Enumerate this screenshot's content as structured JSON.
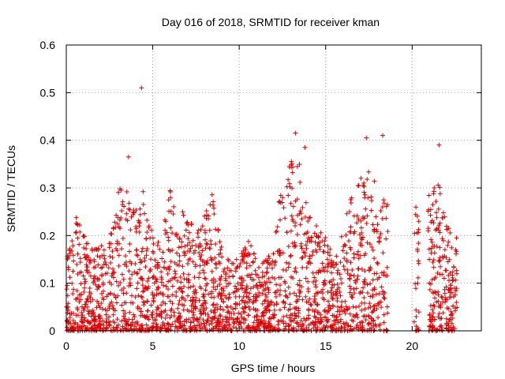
{
  "chart_data": {
    "type": "scatter",
    "title": "Day 016 of 2018, SRMTID for receiver kman",
    "xlabel": "GPS time / hours",
    "ylabel": "SRMTID / TECUs",
    "xlim": [
      0,
      24
    ],
    "ylim": [
      0,
      0.6
    ],
    "xticks": [
      0,
      5,
      10,
      15,
      20
    ],
    "yticks": [
      0,
      0.1,
      0.2,
      0.3,
      0.4,
      0.5,
      0.6
    ],
    "xtick_labels": [
      "0",
      "5",
      "10",
      "15",
      "20"
    ],
    "ytick_labels": [
      "0",
      "0.1",
      "0.2",
      "0.3",
      "0.4",
      "0.5",
      "0.6"
    ],
    "grid": true,
    "marker": "+",
    "series_color": "#e00000",
    "data_gaps_hours": [
      [
        18.6,
        20.1
      ],
      [
        20.4,
        20.9
      ]
    ],
    "notable_points": [
      {
        "x": 4.35,
        "y": 0.51
      },
      {
        "x": 3.6,
        "y": 0.365
      },
      {
        "x": 13.25,
        "y": 0.415
      },
      {
        "x": 13.8,
        "y": 0.385
      },
      {
        "x": 17.35,
        "y": 0.405
      },
      {
        "x": 18.3,
        "y": 0.41
      },
      {
        "x": 21.55,
        "y": 0.39
      },
      {
        "x": 6.75,
        "y": 0.0
      },
      {
        "x": 20.25,
        "y": 0.0
      }
    ],
    "envelope_upper": [
      {
        "x": 0.0,
        "y": 0.15
      },
      {
        "x": 0.5,
        "y": 0.25
      },
      {
        "x": 1.0,
        "y": 0.2
      },
      {
        "x": 1.5,
        "y": 0.18
      },
      {
        "x": 2.0,
        "y": 0.19
      },
      {
        "x": 2.5,
        "y": 0.2
      },
      {
        "x": 3.0,
        "y": 0.3
      },
      {
        "x": 3.5,
        "y": 0.3
      },
      {
        "x": 4.0,
        "y": 0.25
      },
      {
        "x": 4.5,
        "y": 0.3
      },
      {
        "x": 5.0,
        "y": 0.2
      },
      {
        "x": 5.5,
        "y": 0.2
      },
      {
        "x": 6.0,
        "y": 0.3
      },
      {
        "x": 6.5,
        "y": 0.25
      },
      {
        "x": 7.0,
        "y": 0.25
      },
      {
        "x": 7.5,
        "y": 0.2
      },
      {
        "x": 8.0,
        "y": 0.25
      },
      {
        "x": 8.5,
        "y": 0.3
      },
      {
        "x": 9.0,
        "y": 0.18
      },
      {
        "x": 9.5,
        "y": 0.15
      },
      {
        "x": 10.0,
        "y": 0.15
      },
      {
        "x": 10.5,
        "y": 0.2
      },
      {
        "x": 11.0,
        "y": 0.15
      },
      {
        "x": 11.5,
        "y": 0.15
      },
      {
        "x": 12.0,
        "y": 0.2
      },
      {
        "x": 12.5,
        "y": 0.32
      },
      {
        "x": 13.0,
        "y": 0.38
      },
      {
        "x": 13.5,
        "y": 0.35
      },
      {
        "x": 14.0,
        "y": 0.25
      },
      {
        "x": 14.5,
        "y": 0.22
      },
      {
        "x": 15.0,
        "y": 0.2
      },
      {
        "x": 15.5,
        "y": 0.15
      },
      {
        "x": 16.0,
        "y": 0.22
      },
      {
        "x": 16.5,
        "y": 0.3
      },
      {
        "x": 17.0,
        "y": 0.33
      },
      {
        "x": 17.5,
        "y": 0.35
      },
      {
        "x": 18.0,
        "y": 0.3
      },
      {
        "x": 18.5,
        "y": 0.28
      },
      {
        "x": 21.0,
        "y": 0.3
      },
      {
        "x": 21.5,
        "y": 0.33
      },
      {
        "x": 22.0,
        "y": 0.22
      },
      {
        "x": 22.5,
        "y": 0.2
      }
    ]
  }
}
